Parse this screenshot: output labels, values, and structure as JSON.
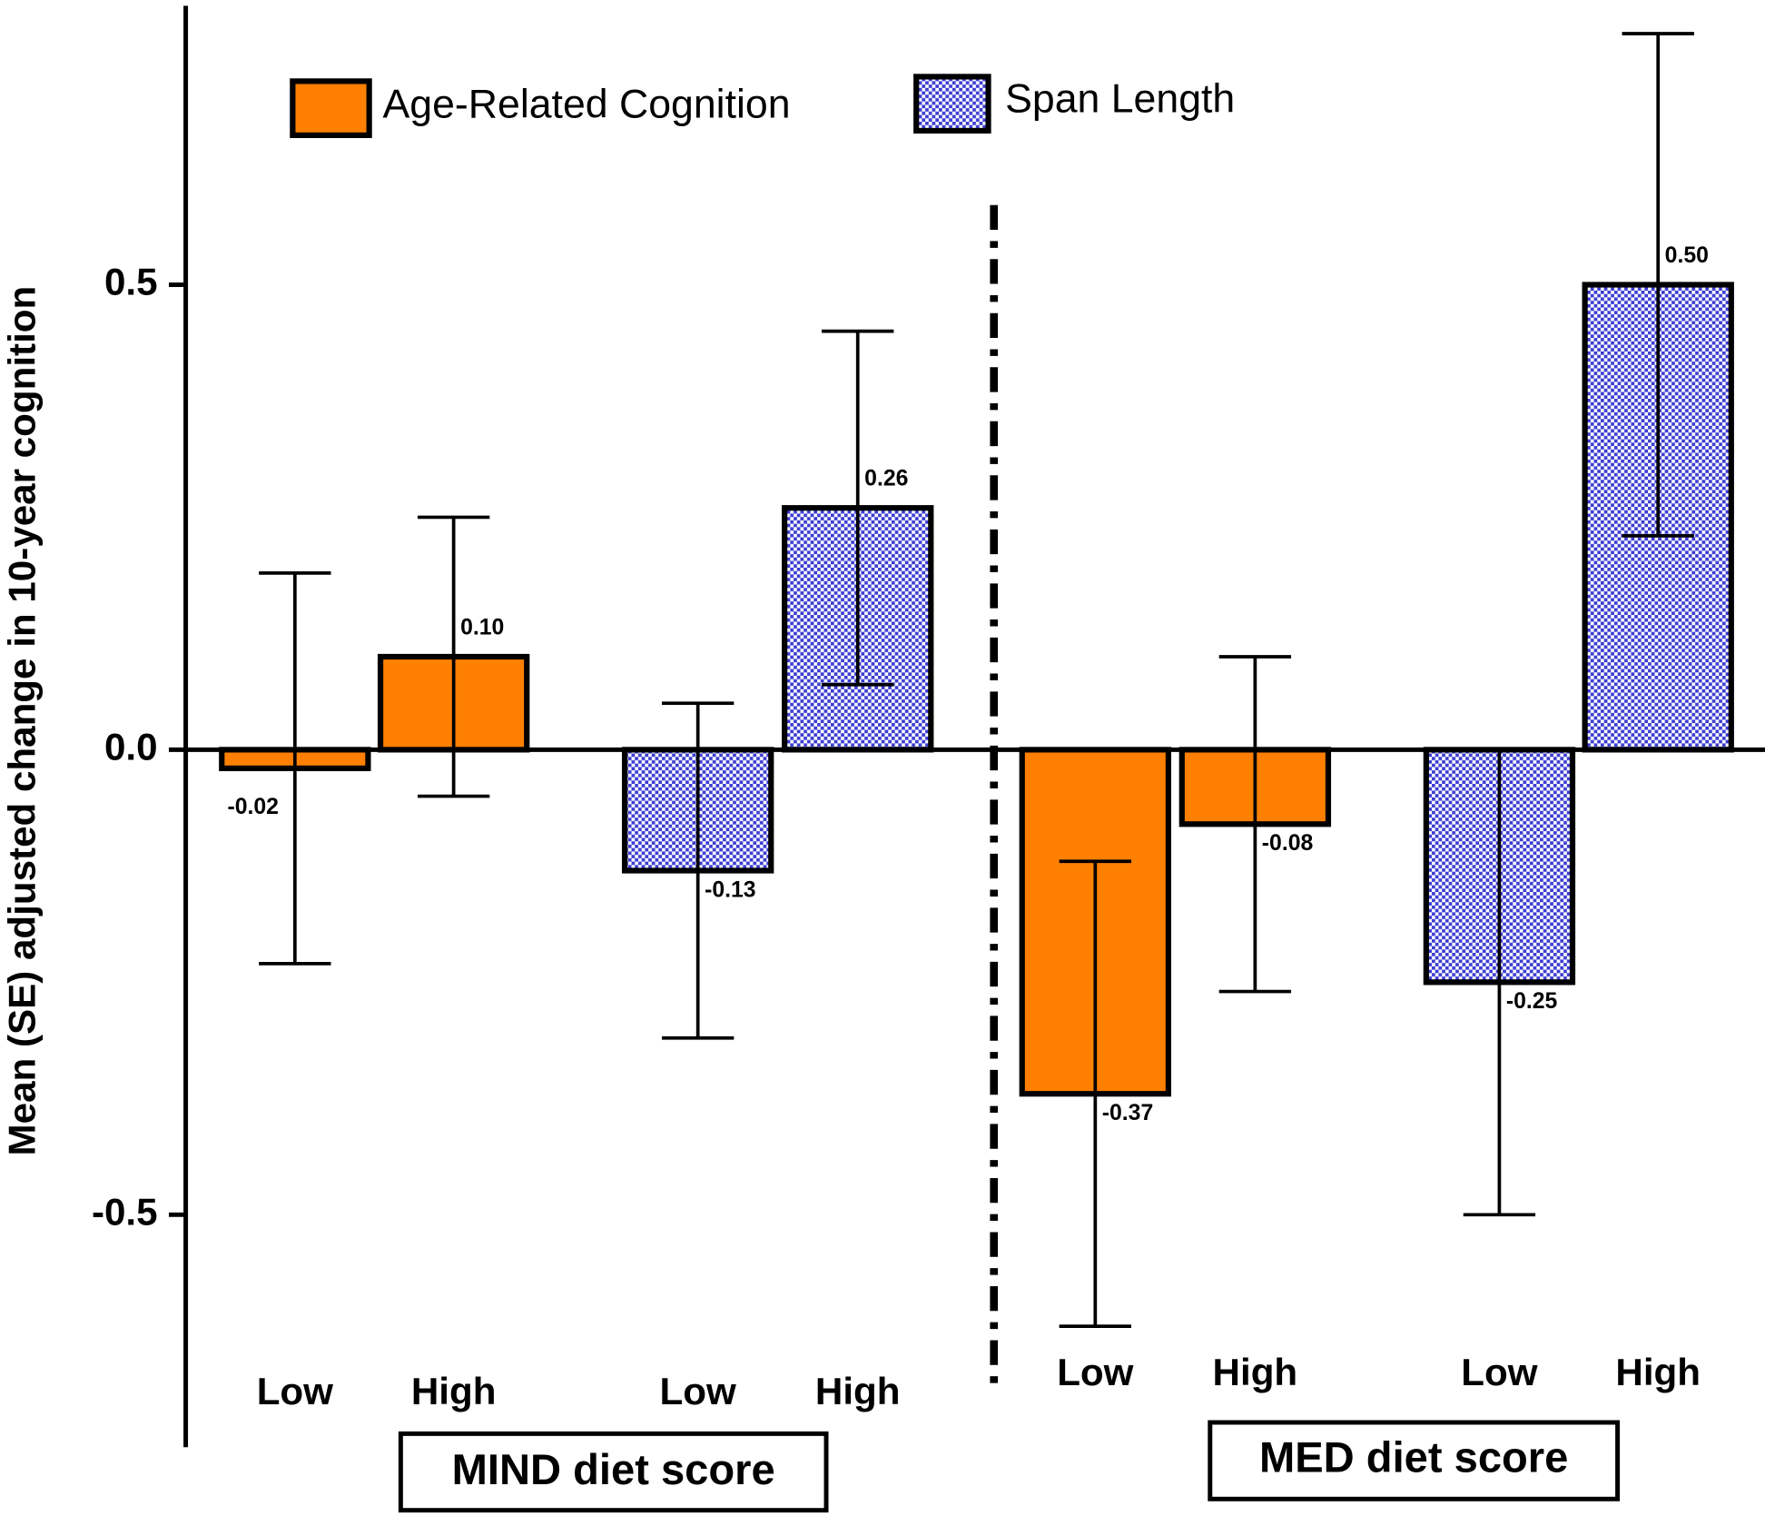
{
  "chart_data": {
    "type": "bar",
    "y_label": "Mean (SE) adjusted change in 10-year cognition",
    "group_labels": [
      "MIND diet score",
      "MED diet score"
    ],
    "categories": [
      "Low",
      "High",
      "Low",
      "High",
      "Low",
      "High",
      "Low",
      "High"
    ],
    "series": [
      {
        "name": "Age-Related Cognition",
        "color": "#ff8000",
        "values": [
          -0.02,
          0.1,
          null,
          null,
          -0.37,
          -0.08,
          null,
          null
        ],
        "errors": [
          0.21,
          0.15,
          null,
          null,
          0.25,
          0.18,
          null,
          null
        ],
        "value_labels": [
          "-0.02",
          "0.10",
          null,
          null,
          "-0.37",
          "-0.08",
          null,
          null
        ]
      },
      {
        "name": "Span Length",
        "color": "#3c3cd2",
        "values": [
          null,
          null,
          -0.13,
          0.26,
          null,
          null,
          -0.25,
          0.5
        ],
        "errors": [
          null,
          null,
          0.18,
          0.19,
          null,
          null,
          0.25,
          0.27
        ],
        "value_labels": [
          null,
          null,
          "-0.13",
          "0.26",
          null,
          null,
          "-0.25",
          "0.50"
        ]
      }
    ],
    "ylim": [
      -0.75,
      0.8
    ],
    "yticks": [
      -0.5,
      {
        "value": 0,
        "label": "0.0"
      },
      0.5
    ]
  }
}
